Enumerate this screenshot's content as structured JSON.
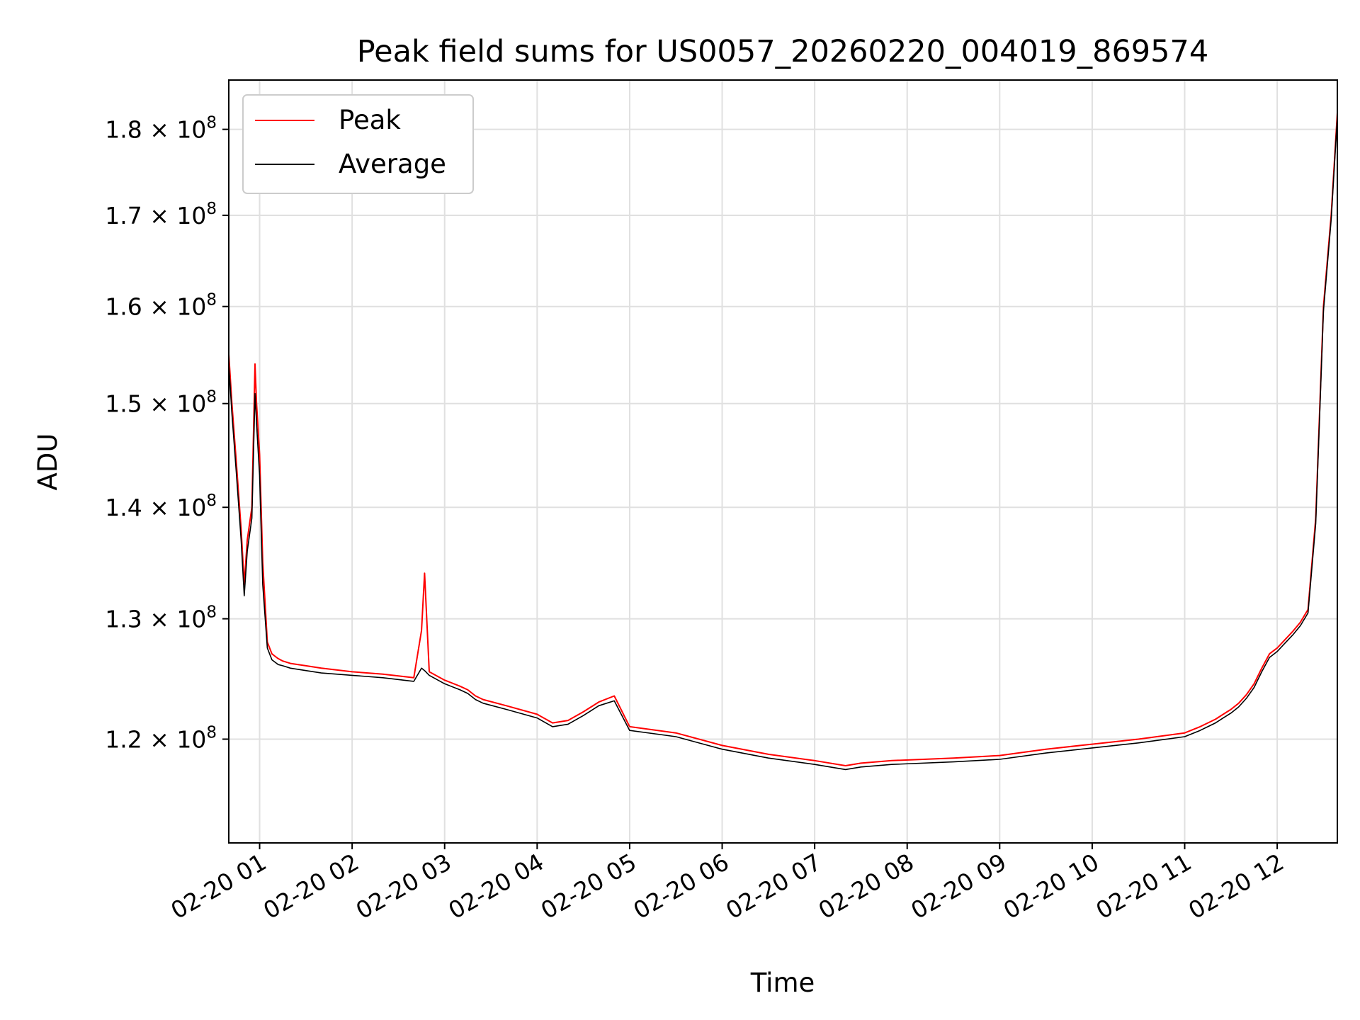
{
  "chart_data": {
    "type": "line",
    "title": "Peak field sums for US0057_20260220_004019_869574",
    "xlabel": "Time",
    "ylabel": "ADU",
    "y_scale": "log",
    "ylim": [
      112000000,
      186000000
    ],
    "xlim": [
      "2026-02-20 00:40",
      "2026-02-20 12:39"
    ],
    "grid": true,
    "legend_position": "top-left",
    "x_tick_labels": [
      "02-20 01",
      "02-20 02",
      "02-20 03",
      "02-20 04",
      "02-20 05",
      "02-20 06",
      "02-20 07",
      "02-20 08",
      "02-20 09",
      "02-20 10",
      "02-20 11",
      "02-20 12"
    ],
    "x_tick_times": [
      "2026-02-20 01:00",
      "2026-02-20 02:00",
      "2026-02-20 03:00",
      "2026-02-20 04:00",
      "2026-02-20 05:00",
      "2026-02-20 06:00",
      "2026-02-20 07:00",
      "2026-02-20 08:00",
      "2026-02-20 09:00",
      "2026-02-20 10:00",
      "2026-02-20 11:00",
      "2026-02-20 12:00"
    ],
    "y_ticks": [
      {
        "value": 120000000,
        "mantissa": "1.2",
        "exp": "8"
      },
      {
        "value": 130000000,
        "mantissa": "1.3",
        "exp": "8"
      },
      {
        "value": 140000000,
        "mantissa": "1.4",
        "exp": "8"
      },
      {
        "value": 150000000,
        "mantissa": "1.5",
        "exp": "8"
      },
      {
        "value": 160000000,
        "mantissa": "1.6",
        "exp": "8"
      },
      {
        "value": 170000000,
        "mantissa": "1.7",
        "exp": "8"
      },
      {
        "value": 180000000,
        "mantissa": "1.8",
        "exp": "8"
      }
    ],
    "series": [
      {
        "name": "Peak",
        "color": "#ff0000",
        "x": [
          "2026-02-20 00:40",
          "2026-02-20 00:42",
          "2026-02-20 00:45",
          "2026-02-20 00:48",
          "2026-02-20 00:50",
          "2026-02-20 00:52",
          "2026-02-20 00:55",
          "2026-02-20 00:57",
          "2026-02-20 00:58",
          "2026-02-20 01:00",
          "2026-02-20 01:02",
          "2026-02-20 01:05",
          "2026-02-20 01:08",
          "2026-02-20 01:10",
          "2026-02-20 01:12",
          "2026-02-20 01:15",
          "2026-02-20 01:20",
          "2026-02-20 01:30",
          "2026-02-20 01:40",
          "2026-02-20 02:00",
          "2026-02-20 02:20",
          "2026-02-20 02:40",
          "2026-02-20 02:45",
          "2026-02-20 02:47",
          "2026-02-20 02:50",
          "2026-02-20 03:00",
          "2026-02-20 03:10",
          "2026-02-20 03:15",
          "2026-02-20 03:20",
          "2026-02-20 03:25",
          "2026-02-20 03:40",
          "2026-02-20 04:00",
          "2026-02-20 04:10",
          "2026-02-20 04:20",
          "2026-02-20 04:30",
          "2026-02-20 04:40",
          "2026-02-20 04:50",
          "2026-02-20 05:00",
          "2026-02-20 05:30",
          "2026-02-20 06:00",
          "2026-02-20 06:30",
          "2026-02-20 07:00",
          "2026-02-20 07:20",
          "2026-02-20 07:30",
          "2026-02-20 07:50",
          "2026-02-20 08:30",
          "2026-02-20 09:00",
          "2026-02-20 09:30",
          "2026-02-20 10:00",
          "2026-02-20 10:30",
          "2026-02-20 11:00",
          "2026-02-20 11:10",
          "2026-02-20 11:15",
          "2026-02-20 11:20",
          "2026-02-20 11:25",
          "2026-02-20 11:30",
          "2026-02-20 11:35",
          "2026-02-20 11:40",
          "2026-02-20 11:45",
          "2026-02-20 11:50",
          "2026-02-20 11:55",
          "2026-02-20 12:00",
          "2026-02-20 12:05",
          "2026-02-20 12:10",
          "2026-02-20 12:15",
          "2026-02-20 12:20",
          "2026-02-20 12:25",
          "2026-02-20 12:30",
          "2026-02-20 12:35",
          "2026-02-20 12:39"
        ],
        "values": [
          155000000,
          150000000,
          144000000,
          138000000,
          133000000,
          137000000,
          140000000,
          154000000,
          150000000,
          145000000,
          135000000,
          128000000,
          127000000,
          126800000,
          126600000,
          126400000,
          126200000,
          126000000,
          125800000,
          125500000,
          125300000,
          125000000,
          129000000,
          134000000,
          125500000,
          124800000,
          124300000,
          124000000,
          123500000,
          123200000,
          122700000,
          122000000,
          121300000,
          121500000,
          122200000,
          123000000,
          123500000,
          121000000,
          120500000,
          119500000,
          118800000,
          118300000,
          117900000,
          118100000,
          118300000,
          118500000,
          118700000,
          119200000,
          119600000,
          120000000,
          120500000,
          121000000,
          121300000,
          121600000,
          122000000,
          122400000,
          122900000,
          123600000,
          124500000,
          125800000,
          127000000,
          127500000,
          128200000,
          128900000,
          129700000,
          130800000,
          139000000,
          160000000,
          170000000,
          182000000
        ]
      },
      {
        "name": "Average",
        "color": "#000000",
        "x": [
          "2026-02-20 00:40",
          "2026-02-20 00:42",
          "2026-02-20 00:45",
          "2026-02-20 00:48",
          "2026-02-20 00:50",
          "2026-02-20 00:52",
          "2026-02-20 00:55",
          "2026-02-20 00:57",
          "2026-02-20 00:58",
          "2026-02-20 01:00",
          "2026-02-20 01:02",
          "2026-02-20 01:05",
          "2026-02-20 01:08",
          "2026-02-20 01:10",
          "2026-02-20 01:12",
          "2026-02-20 01:15",
          "2026-02-20 01:20",
          "2026-02-20 01:30",
          "2026-02-20 01:40",
          "2026-02-20 02:00",
          "2026-02-20 02:20",
          "2026-02-20 02:40",
          "2026-02-20 02:45",
          "2026-02-20 02:47",
          "2026-02-20 02:50",
          "2026-02-20 03:00",
          "2026-02-20 03:10",
          "2026-02-20 03:15",
          "2026-02-20 03:20",
          "2026-02-20 03:25",
          "2026-02-20 03:40",
          "2026-02-20 04:00",
          "2026-02-20 04:10",
          "2026-02-20 04:20",
          "2026-02-20 04:30",
          "2026-02-20 04:40",
          "2026-02-20 04:50",
          "2026-02-20 05:00",
          "2026-02-20 05:30",
          "2026-02-20 06:00",
          "2026-02-20 06:30",
          "2026-02-20 07:00",
          "2026-02-20 07:20",
          "2026-02-20 07:30",
          "2026-02-20 07:50",
          "2026-02-20 08:30",
          "2026-02-20 09:00",
          "2026-02-20 09:30",
          "2026-02-20 10:00",
          "2026-02-20 10:30",
          "2026-02-20 11:00",
          "2026-02-20 11:10",
          "2026-02-20 11:15",
          "2026-02-20 11:20",
          "2026-02-20 11:25",
          "2026-02-20 11:30",
          "2026-02-20 11:35",
          "2026-02-20 11:40",
          "2026-02-20 11:45",
          "2026-02-20 11:50",
          "2026-02-20 11:55",
          "2026-02-20 12:00",
          "2026-02-20 12:05",
          "2026-02-20 12:10",
          "2026-02-20 12:15",
          "2026-02-20 12:20",
          "2026-02-20 12:25",
          "2026-02-20 12:30",
          "2026-02-20 12:35",
          "2026-02-20 12:39"
        ],
        "values": [
          154000000,
          149000000,
          143000000,
          137000000,
          132000000,
          136000000,
          139000000,
          151000000,
          148000000,
          143000000,
          133000000,
          127500000,
          126500000,
          126300000,
          126100000,
          126000000,
          125800000,
          125600000,
          125400000,
          125200000,
          125000000,
          124700000,
          125800000,
          125600000,
          125200000,
          124500000,
          124000000,
          123700000,
          123200000,
          122900000,
          122400000,
          121700000,
          121000000,
          121200000,
          121900000,
          122700000,
          123100000,
          120700000,
          120200000,
          119200000,
          118500000,
          118000000,
          117600000,
          117800000,
          118000000,
          118200000,
          118400000,
          118900000,
          119300000,
          119700000,
          120200000,
          120700000,
          121000000,
          121300000,
          121700000,
          122100000,
          122600000,
          123300000,
          124200000,
          125500000,
          126700000,
          127200000,
          127900000,
          128600000,
          129400000,
          130500000,
          138500000,
          159500000,
          169500000,
          181500000
        ]
      }
    ]
  }
}
